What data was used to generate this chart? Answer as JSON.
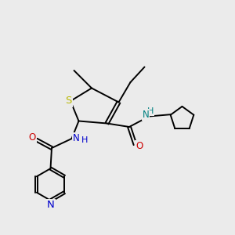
{
  "bg_color": "#ebebeb",
  "atom_colors": {
    "S": "#b8b800",
    "N": "#0000cc",
    "O": "#cc0000",
    "C": "#000000",
    "H": "#000000",
    "NH": "#008080"
  },
  "bond_color": "#000000",
  "font_size_atoms": 8.5,
  "figsize": [
    3.0,
    3.0
  ],
  "dpi": 100
}
